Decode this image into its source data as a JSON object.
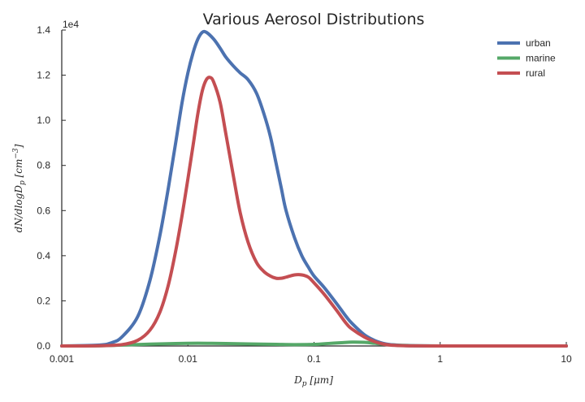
{
  "chart_data": {
    "type": "line",
    "title": "Various Aerosol Distributions",
    "xlabel": "D_p [μm]",
    "ylabel": "dN/dlogD_p [cm^-3]",
    "x_scale": "log",
    "xlim": [
      0.001,
      10
    ],
    "ylim": [
      0,
      14000
    ],
    "y_multiplier_label": "1e4",
    "x_ticks": [
      0.001,
      0.01,
      0.1,
      1,
      10
    ],
    "x_tick_labels": [
      "0.001",
      "0.01",
      "0.1",
      "1",
      "10"
    ],
    "y_ticks": [
      0,
      2000,
      4000,
      6000,
      8000,
      10000,
      12000,
      14000
    ],
    "y_tick_labels": [
      "0.0",
      "0.2",
      "0.4",
      "0.6",
      "0.8",
      "1.0",
      "1.2",
      "1.4"
    ],
    "legend_position": "top-right",
    "grid": false,
    "series": [
      {
        "name": "urban",
        "color": "#4C72B0",
        "x": [
          0.001,
          0.002,
          0.0025,
          0.003,
          0.004,
          0.005,
          0.006,
          0.007,
          0.008,
          0.009,
          0.01,
          0.011,
          0.012,
          0.013,
          0.014,
          0.016,
          0.018,
          0.02,
          0.023,
          0.026,
          0.03,
          0.035,
          0.04,
          0.045,
          0.05,
          0.055,
          0.06,
          0.07,
          0.08,
          0.09,
          0.1,
          0.12,
          0.15,
          0.18,
          0.2,
          0.25,
          0.3,
          0.35,
          0.4,
          0.5,
          0.6,
          0.8,
          1,
          2,
          5,
          10
        ],
        "y": [
          0,
          40,
          150,
          400,
          1300,
          2900,
          4900,
          7000,
          9000,
          10800,
          12100,
          13000,
          13600,
          13900,
          13900,
          13600,
          13200,
          12800,
          12400,
          12100,
          11800,
          11200,
          10300,
          9300,
          8100,
          7000,
          6000,
          4800,
          4000,
          3500,
          3100,
          2600,
          1900,
          1300,
          1000,
          500,
          250,
          120,
          60,
          20,
          8,
          3,
          0,
          0,
          0,
          0
        ]
      },
      {
        "name": "marine",
        "color": "#55A868",
        "x": [
          0.001,
          0.002,
          0.003,
          0.005,
          0.008,
          0.012,
          0.02,
          0.03,
          0.05,
          0.07,
          0.1,
          0.13,
          0.17,
          0.2,
          0.25,
          0.3,
          0.35,
          0.45,
          0.6,
          0.8,
          1,
          2,
          5,
          10
        ],
        "y": [
          0,
          10,
          40,
          80,
          110,
          120,
          110,
          90,
          70,
          60,
          70,
          110,
          150,
          170,
          160,
          120,
          80,
          40,
          15,
          5,
          2,
          0,
          0,
          0
        ]
      },
      {
        "name": "rural",
        "color": "#C44E52",
        "x": [
          0.001,
          0.002,
          0.003,
          0.004,
          0.005,
          0.006,
          0.007,
          0.008,
          0.009,
          0.01,
          0.011,
          0.012,
          0.013,
          0.014,
          0.015,
          0.016,
          0.018,
          0.02,
          0.023,
          0.026,
          0.03,
          0.035,
          0.04,
          0.045,
          0.05,
          0.055,
          0.06,
          0.07,
          0.08,
          0.09,
          0.1,
          0.12,
          0.15,
          0.18,
          0.2,
          0.25,
          0.3,
          0.35,
          0.4,
          0.5,
          0.6,
          0.8,
          1,
          2,
          5,
          10
        ],
        "y": [
          0,
          10,
          60,
          250,
          700,
          1500,
          2700,
          4200,
          5800,
          7400,
          8900,
          10300,
          11300,
          11800,
          11900,
          11700,
          10800,
          9400,
          7500,
          5900,
          4600,
          3700,
          3300,
          3100,
          3000,
          3000,
          3050,
          3150,
          3150,
          3050,
          2800,
          2300,
          1600,
          1000,
          750,
          400,
          200,
          90,
          40,
          12,
          5,
          2,
          0,
          0,
          0,
          0
        ]
      }
    ]
  }
}
